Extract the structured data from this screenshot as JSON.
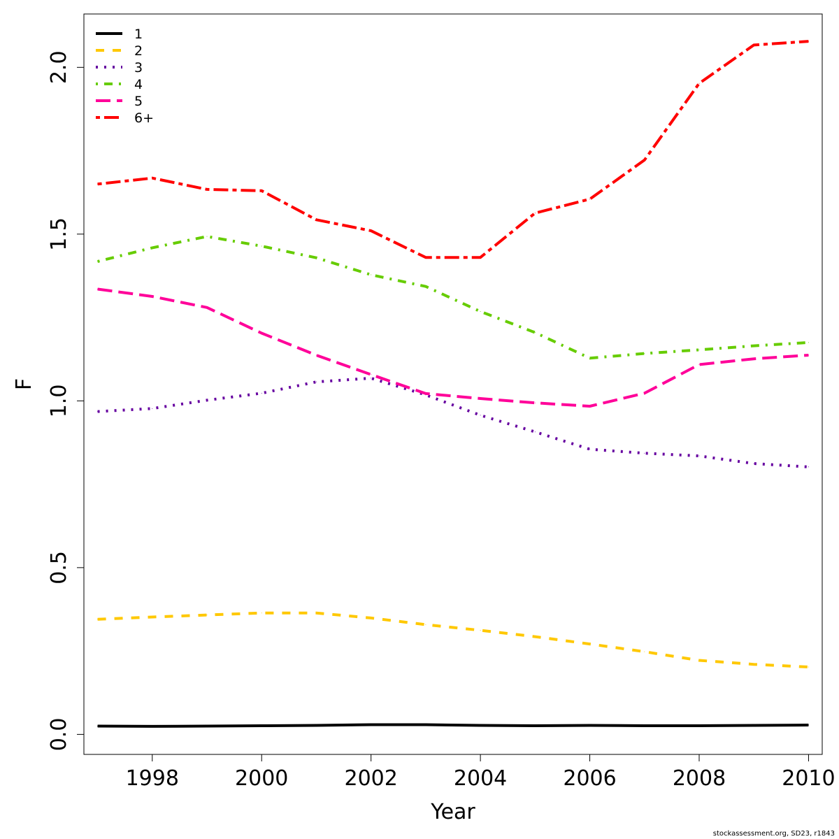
{
  "chart_data": {
    "type": "line",
    "xlabel": "Year",
    "ylabel": "F",
    "xlim": [
      1996.75,
      2010.25
    ],
    "ylim": [
      -0.06,
      2.16
    ],
    "x_ticks": [
      1998,
      2000,
      2002,
      2004,
      2006,
      2008,
      2010
    ],
    "x_tick_labels": [
      "1998",
      "2000",
      "2002",
      "2004",
      "2006",
      "2008",
      "2010"
    ],
    "y_ticks": [
      0.0,
      0.5,
      1.0,
      1.5,
      2.0
    ],
    "y_tick_labels": [
      "0.0",
      "0.5",
      "1.0",
      "1.5",
      "2.0"
    ],
    "grid": false,
    "legend_position": "top-left",
    "x": [
      1997,
      1998,
      1999,
      2000,
      2001,
      2002,
      2003,
      2004,
      2005,
      2006,
      2007,
      2008,
      2009,
      2010
    ],
    "series": [
      {
        "name": "1",
        "color": "#000000",
        "dash": "solid",
        "values": [
          0.025,
          0.024,
          0.025,
          0.026,
          0.027,
          0.029,
          0.029,
          0.027,
          0.026,
          0.027,
          0.026,
          0.026,
          0.027,
          0.028
        ]
      },
      {
        "name": "2",
        "color": "#FFC800",
        "dash": "dashed",
        "values": [
          0.345,
          0.352,
          0.358,
          0.364,
          0.364,
          0.349,
          0.329,
          0.312,
          0.293,
          0.271,
          0.248,
          0.222,
          0.21,
          0.202
        ]
      },
      {
        "name": "3",
        "color": "#6600A0",
        "dash": "dotted",
        "values": [
          0.968,
          0.977,
          1.002,
          1.023,
          1.057,
          1.068,
          1.018,
          0.957,
          0.907,
          0.855,
          0.843,
          0.835,
          0.812,
          0.802
        ]
      },
      {
        "name": "4",
        "color": "#66CC00",
        "dash": "dotdash",
        "values": [
          1.418,
          1.459,
          1.493,
          1.464,
          1.429,
          1.378,
          1.343,
          1.268,
          1.205,
          1.128,
          1.142,
          1.153,
          1.165,
          1.175
        ]
      },
      {
        "name": "5",
        "color": "#FF0099",
        "dash": "longdash",
        "values": [
          1.335,
          1.313,
          1.28,
          1.203,
          1.137,
          1.079,
          1.022,
          1.007,
          0.994,
          0.984,
          1.023,
          1.109,
          1.126,
          1.137
        ]
      },
      {
        "name": "6+",
        "color": "#FF0000",
        "dash": "twodash",
        "values": [
          1.65,
          1.668,
          1.634,
          1.63,
          1.543,
          1.51,
          1.43,
          1.43,
          1.563,
          1.605,
          1.722,
          1.952,
          2.067,
          2.078
        ]
      }
    ]
  },
  "credit": "stockassessment.org, SD23, r1843"
}
